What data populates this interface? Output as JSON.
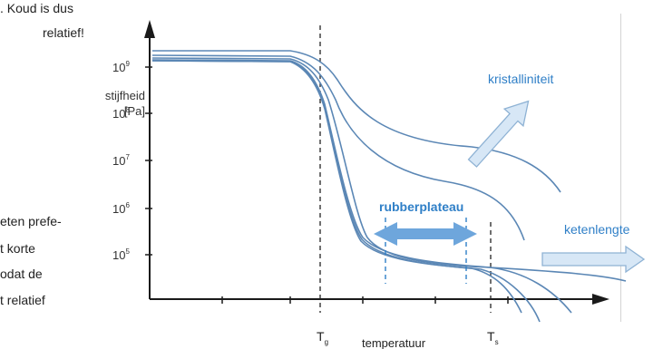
{
  "left_column": {
    "lines": [
      ". Koud is dus",
      "relatief!",
      "eten prefe-",
      "t korte",
      "odat de",
      "t relatief"
    ]
  },
  "diagram": {
    "y_axis_label": [
      "stijfheid",
      "[Pa]"
    ],
    "y_ticks": [
      {
        "base": "10",
        "exp": "9"
      },
      {
        "base": "10",
        "exp": "8"
      },
      {
        "base": "10",
        "exp": "7"
      },
      {
        "base": "10",
        "exp": "6"
      },
      {
        "base": "10",
        "exp": "5"
      }
    ],
    "x_axis_label": "temperatuur",
    "markers": {
      "tg": {
        "main": "T",
        "sub": "g"
      },
      "ts": {
        "main": "T",
        "sub": "s"
      }
    },
    "annotations": {
      "kristalliniteit": "kristalliniteit",
      "rubberplateau": "rubberplateau",
      "ketenlengte": "ketenlengte"
    },
    "colors": {
      "curve": "#5b87b5",
      "label": "#2f7fc7",
      "arrow_fill": "#d7e7f6",
      "arrow_stroke": "#8eb2d4",
      "rubber_arrow": "#6ea6dc",
      "axis": "#1a1a1a"
    }
  }
}
